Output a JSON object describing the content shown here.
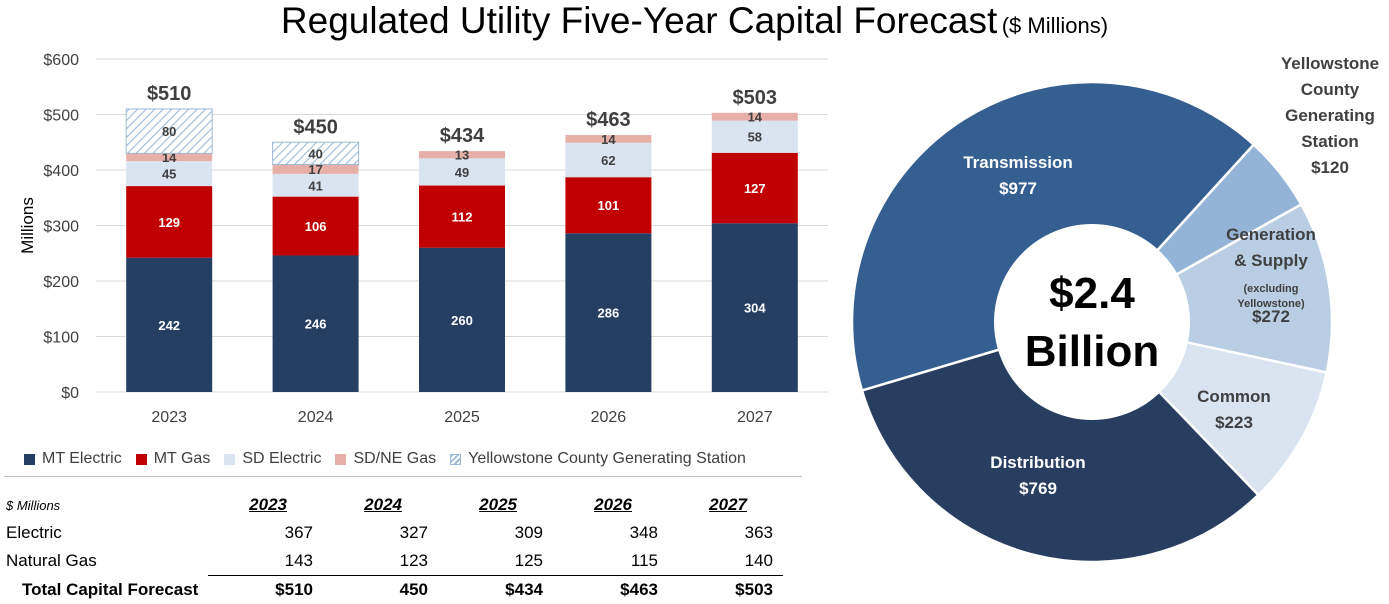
{
  "title": {
    "main": "Regulated Utility Five-Year Capital Forecast",
    "sub": "($ Millions)"
  },
  "colors": {
    "mt_electric": "#253f63",
    "mt_gas": "#c00000",
    "sd_electric": "#dae3f0",
    "sdne_gas": "#e6b0a9",
    "yellowstone_stripe": "#9dbad8",
    "pie_transmission": "#355f90",
    "pie_distribution": "#273e61",
    "pie_common": "#dae3f0",
    "pie_generation": "#b9cde4",
    "pie_yellowstone": "#93b3d7"
  },
  "chart_data": [
    {
      "type": "bar",
      "stacked": true,
      "categories": [
        "2023",
        "2024",
        "2025",
        "2026",
        "2027"
      ],
      "ylabel": "Millions",
      "ylim": [
        0,
        600
      ],
      "yticks": [
        0,
        100,
        200,
        300,
        400,
        500,
        600
      ],
      "ytick_labels": [
        "$0",
        "$100",
        "$200",
        "$300",
        "$400",
        "$500",
        "$600"
      ],
      "grid": true,
      "series": [
        {
          "name": "MT Electric",
          "values": [
            242,
            246,
            260,
            286,
            304
          ]
        },
        {
          "name": "MT Gas",
          "values": [
            129,
            106,
            112,
            101,
            127
          ]
        },
        {
          "name": "SD Electric",
          "values": [
            45,
            41,
            49,
            62,
            58
          ]
        },
        {
          "name": "SD/NE Gas",
          "values": [
            14,
            17,
            13,
            14,
            14
          ]
        },
        {
          "name": "Yellowstone County Generating Station",
          "values": [
            80,
            40,
            null,
            null,
            null
          ]
        }
      ],
      "totals": [
        "$510",
        "$450",
        "$434",
        "$463",
        "$503"
      ],
      "legend_position": "bottom"
    },
    {
      "type": "pie",
      "donut": true,
      "center_label": [
        "$2.4",
        "Billion"
      ],
      "slices": [
        {
          "label": [
            "Transmission"
          ],
          "value": 977,
          "value_label": "$977"
        },
        {
          "label": [
            "Yellowstone",
            "County",
            "Generating",
            "Station"
          ],
          "value": 120,
          "value_label": "$120"
        },
        {
          "label": [
            "Generation",
            "& Supply"
          ],
          "note": [
            "(excluding",
            "Yellowstone)"
          ],
          "value": 272,
          "value_label": "$272"
        },
        {
          "label": [
            "Common"
          ],
          "value": 223,
          "value_label": "$223"
        },
        {
          "label": [
            "Distribution"
          ],
          "value": 769,
          "value_label": "$769"
        }
      ]
    }
  ],
  "table": {
    "units": "$ Millions",
    "years": [
      "2023",
      "2024",
      "2025",
      "2026",
      "2027"
    ],
    "rows": [
      {
        "label": "Electric",
        "values": [
          "367",
          "327",
          "309",
          "348",
          "363"
        ]
      },
      {
        "label": "Natural Gas",
        "values": [
          "143",
          "123",
          "125",
          "115",
          "140"
        ]
      }
    ],
    "total": {
      "label": "Total Capital Forecast",
      "values": [
        "$510",
        "450",
        "$434",
        "$463",
        "$503"
      ]
    }
  }
}
